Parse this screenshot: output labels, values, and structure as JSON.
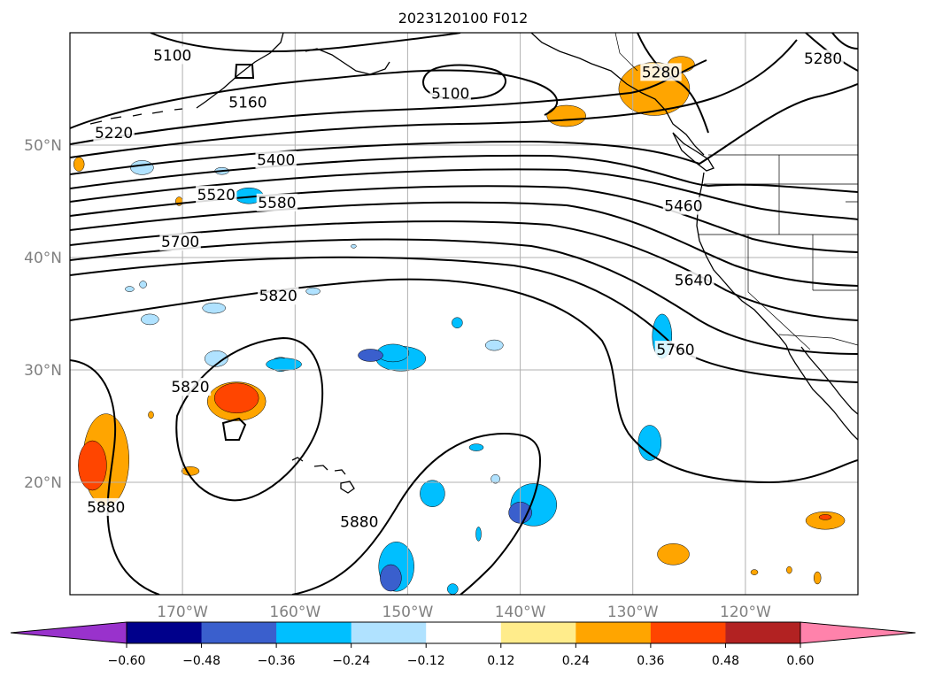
{
  "chart_data": {
    "type": "contour_map",
    "title": "2023120100 F012",
    "projection": "PlateCarree",
    "extent": {
      "lon": [
        -180,
        -110
      ],
      "lat": [
        10,
        60
      ]
    },
    "grid": true,
    "lat_ticks": [
      {
        "lat": 50,
        "label": "50°N"
      },
      {
        "lat": 40,
        "label": "40°N"
      },
      {
        "lat": 30,
        "label": "30°N"
      },
      {
        "lat": 20,
        "label": "20°N"
      }
    ],
    "lon_ticks": [
      {
        "lon": -170,
        "label": "170°W"
      },
      {
        "lon": -160,
        "label": "160°W"
      },
      {
        "lon": -150,
        "label": "150°W"
      },
      {
        "lon": -140,
        "label": "140°W"
      },
      {
        "lon": -130,
        "label": "130°W"
      },
      {
        "lon": -120,
        "label": "120°W"
      }
    ],
    "contour_field": {
      "levels": [
        5100,
        5160,
        5220,
        5280,
        5400,
        5460,
        5520,
        5580,
        5640,
        5700,
        5760,
        5820,
        5880
      ],
      "labels": [
        {
          "text": "5100",
          "lon": -170.9,
          "lat": 58.0
        },
        {
          "text": "5160",
          "lon": -164.2,
          "lat": 53.8
        },
        {
          "text": "5220",
          "lon": -176.1,
          "lat": 51.1
        },
        {
          "text": "5100",
          "lon": -146.2,
          "lat": 54.6
        },
        {
          "text": "5280",
          "lon": -127.5,
          "lat": 56.5
        },
        {
          "text": "5280",
          "lon": -113.1,
          "lat": 57.7
        },
        {
          "text": "5400",
          "lon": -161.7,
          "lat": 48.7
        },
        {
          "text": "5520",
          "lon": -167.0,
          "lat": 45.6
        },
        {
          "text": "5580",
          "lon": -161.6,
          "lat": 44.9
        },
        {
          "text": "5460",
          "lon": -125.5,
          "lat": 44.6
        },
        {
          "text": "5700",
          "lon": -170.2,
          "lat": 41.4
        },
        {
          "text": "5640",
          "lon": -124.6,
          "lat": 38.0
        },
        {
          "text": "5820",
          "lon": -161.5,
          "lat": 36.6
        },
        {
          "text": "5760",
          "lon": -126.2,
          "lat": 31.8
        },
        {
          "text": "5820",
          "lon": -169.3,
          "lat": 28.5
        },
        {
          "text": "5880",
          "lon": -176.8,
          "lat": 17.8
        },
        {
          "text": "5880",
          "lon": -154.3,
          "lat": 16.5
        }
      ]
    },
    "shaded_field": {
      "colorbar": {
        "orientation": "horizontal",
        "extend": "both",
        "tick_values": [
          -0.6,
          -0.48,
          -0.36,
          -0.24,
          -0.12,
          0.12,
          0.24,
          0.36,
          0.48,
          0.6
        ],
        "tick_labels": [
          "−0.60",
          "−0.48",
          "−0.36",
          "−0.24",
          "−0.12",
          "0.12",
          "0.24",
          "0.36",
          "0.48",
          "0.60"
        ],
        "colors": [
          "#9932cc",
          "#00008b",
          "#3a5fcd",
          "#00bfff",
          "#b0e2ff",
          "#ffffff",
          "#ffec8b",
          "#ffa500",
          "#ff4500",
          "#b22222",
          "#ff82ab"
        ]
      },
      "blobs": [
        {
          "lon": -161.3,
          "lat": 30.5,
          "rx": 11,
          "ry": 8,
          "level": -0.3
        },
        {
          "lon": -167.0,
          "lat": 31.0,
          "rx": 13,
          "ry": 9,
          "level": -0.24
        },
        {
          "lon": -161.0,
          "lat": 30.5,
          "rx": 20,
          "ry": 7,
          "level": -0.36
        },
        {
          "lon": -172.9,
          "lat": 34.5,
          "rx": 10,
          "ry": 6,
          "level": -0.24
        },
        {
          "lon": -167.2,
          "lat": 35.5,
          "rx": 13,
          "ry": 6,
          "level": -0.24
        },
        {
          "lon": -158.4,
          "lat": 37.0,
          "rx": 8,
          "ry": 4,
          "level": -0.24
        },
        {
          "lon": -151.3,
          "lat": 31.5,
          "rx": 18,
          "ry": 10,
          "level": -0.36
        },
        {
          "lon": -150.6,
          "lat": 31.0,
          "rx": 28,
          "ry": 14,
          "level": -0.3
        },
        {
          "lon": -153.3,
          "lat": 31.3,
          "rx": 14,
          "ry": 7,
          "level": -0.48
        },
        {
          "lon": -145.6,
          "lat": 34.2,
          "rx": 6,
          "ry": 6,
          "level": -0.36
        },
        {
          "lon": -142.3,
          "lat": 32.2,
          "rx": 10,
          "ry": 6,
          "level": -0.24
        },
        {
          "lon": -154.8,
          "lat": 41.0,
          "rx": 3,
          "ry": 2,
          "level": -0.24
        },
        {
          "lon": -174.7,
          "lat": 37.2,
          "rx": 5,
          "ry": 3,
          "level": -0.24
        },
        {
          "lon": -173.5,
          "lat": 37.6,
          "rx": 4,
          "ry": 4,
          "level": -0.24
        },
        {
          "lon": -173.6,
          "lat": 48.0,
          "rx": 13,
          "ry": 8,
          "level": -0.24
        },
        {
          "lon": -164.1,
          "lat": 45.5,
          "rx": 16,
          "ry": 9,
          "level": -0.36
        },
        {
          "lon": -166.5,
          "lat": 47.7,
          "rx": 8,
          "ry": 4,
          "level": -0.24
        },
        {
          "lon": -127.4,
          "lat": 33.0,
          "rx": 11,
          "ry": 25,
          "level": -0.36
        },
        {
          "lon": -128.5,
          "lat": 23.5,
          "rx": 13,
          "ry": 20,
          "level": -0.36
        },
        {
          "lon": -138.8,
          "lat": 18.0,
          "rx": 26,
          "ry": 24,
          "level": -0.36
        },
        {
          "lon": -140.0,
          "lat": 17.3,
          "rx": 13,
          "ry": 12,
          "level": -0.48
        },
        {
          "lon": -142.2,
          "lat": 20.3,
          "rx": 5,
          "ry": 5,
          "level": -0.24
        },
        {
          "lon": -147.8,
          "lat": 19.0,
          "rx": 14,
          "ry": 15,
          "level": -0.36
        },
        {
          "lon": -143.9,
          "lat": 23.1,
          "rx": 8,
          "ry": 4,
          "level": -0.36
        },
        {
          "lon": -143.7,
          "lat": 15.4,
          "rx": 3,
          "ry": 8,
          "level": -0.36
        },
        {
          "lon": -151.0,
          "lat": 12.5,
          "rx": 20,
          "ry": 28,
          "level": -0.36
        },
        {
          "lon": -151.5,
          "lat": 11.5,
          "rx": 12,
          "ry": 15,
          "level": -0.48
        },
        {
          "lon": -146.0,
          "lat": 10.5,
          "rx": 6,
          "ry": 6,
          "level": -0.36
        },
        {
          "lon": -176.8,
          "lat": 22.0,
          "rx": 26,
          "ry": 52,
          "level": 0.24
        },
        {
          "lon": -178.0,
          "lat": 21.5,
          "rx": 16,
          "ry": 28,
          "level": 0.36
        },
        {
          "lon": -172.8,
          "lat": 26.0,
          "rx": 3,
          "ry": 4,
          "level": 0.24
        },
        {
          "lon": -179.2,
          "lat": 48.3,
          "rx": 6,
          "ry": 8,
          "level": 0.24
        },
        {
          "lon": -170.3,
          "lat": 45.0,
          "rx": 4,
          "ry": 5,
          "level": 0.24
        },
        {
          "lon": -165.2,
          "lat": 27.2,
          "rx": 33,
          "ry": 22,
          "level": 0.24
        },
        {
          "lon": -165.2,
          "lat": 27.5,
          "rx": 25,
          "ry": 17,
          "level": 0.36
        },
        {
          "lon": -169.3,
          "lat": 21.0,
          "rx": 10,
          "ry": 5,
          "level": 0.24
        },
        {
          "lon": -135.9,
          "lat": 52.6,
          "rx": 22,
          "ry": 12,
          "level": 0.24
        },
        {
          "lon": -128.1,
          "lat": 55.0,
          "rx": 40,
          "ry": 30,
          "level": 0.24
        },
        {
          "lon": -125.7,
          "lat": 57.2,
          "rx": 15,
          "ry": 9,
          "level": 0.24
        },
        {
          "lon": -126.4,
          "lat": 13.6,
          "rx": 18,
          "ry": 12,
          "level": 0.24
        },
        {
          "lon": -112.9,
          "lat": 16.6,
          "rx": 22,
          "ry": 10,
          "level": 0.24
        },
        {
          "lon": -112.9,
          "lat": 16.9,
          "rx": 7,
          "ry": 3,
          "level": 0.36
        },
        {
          "lon": -119.2,
          "lat": 12.0,
          "rx": 4,
          "ry": 3,
          "level": 0.24
        },
        {
          "lon": -116.1,
          "lat": 12.2,
          "rx": 3,
          "ry": 4,
          "level": 0.24
        },
        {
          "lon": -113.6,
          "lat": 11.5,
          "rx": 4,
          "ry": 7,
          "level": 0.24
        }
      ]
    }
  }
}
